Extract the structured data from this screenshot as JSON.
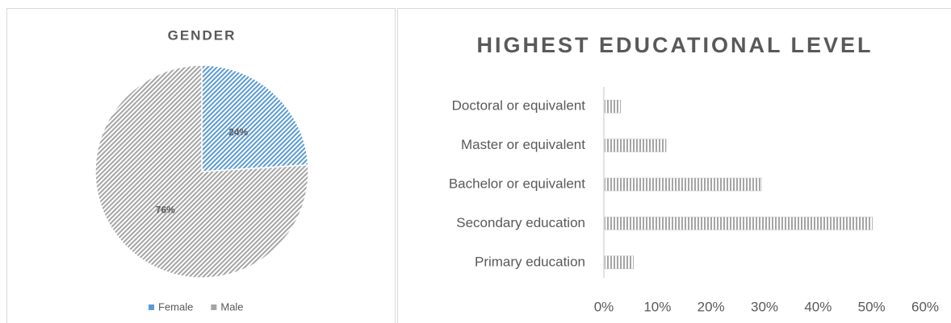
{
  "chart_data": [
    {
      "type": "pie",
      "title": "GENDER",
      "categories": [
        "Female",
        "Male"
      ],
      "values": [
        24,
        76
      ],
      "value_labels": [
        "24%",
        "76%"
      ],
      "colors": [
        "#5b9bd5",
        "#a5a5a5"
      ],
      "legend": "bottom"
    },
    {
      "type": "barh",
      "title": "HIGHEST EDUCATIONAL LEVEL",
      "categories": [
        "Primary education",
        "Secondary education",
        "Bachelor or equivalent",
        "Master or equivalent",
        "Doctoral or equivalent"
      ],
      "values": [
        5.4,
        50,
        29.3,
        11.5,
        3
      ],
      "color": "#a5a5a5",
      "xlim": [
        0,
        60
      ],
      "xticks": [
        {
          "value": 0,
          "label": "0%"
        },
        {
          "value": 10,
          "label": "10%"
        },
        {
          "value": 20,
          "label": "20%"
        },
        {
          "value": 30,
          "label": "30%"
        },
        {
          "value": 40,
          "label": "40%"
        },
        {
          "value": 50,
          "label": "50%"
        },
        {
          "value": 60,
          "label": "60%"
        }
      ],
      "grid": false
    }
  ]
}
